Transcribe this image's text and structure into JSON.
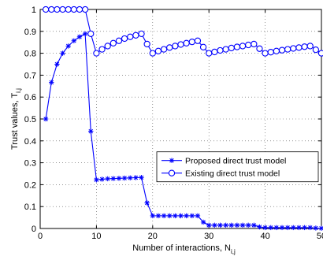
{
  "chart_data": {
    "type": "line",
    "xlabel": "Number of interactions, N",
    "xlabel_sub": "i,j",
    "ylabel": "Trust values, T",
    "ylabel_sub": "i,j",
    "xlim": [
      0,
      50
    ],
    "ylim": [
      0,
      1
    ],
    "x_ticks": [
      0,
      10,
      20,
      30,
      40,
      50
    ],
    "y_ticks": [
      0,
      0.1,
      0.2,
      0.3,
      0.4,
      0.5,
      0.6,
      0.7,
      0.8,
      0.9,
      1
    ],
    "grid": true,
    "legend_position": "bottom-right",
    "series_color": "#0000ff",
    "x": [
      1,
      2,
      3,
      4,
      5,
      6,
      7,
      8,
      9,
      10,
      11,
      12,
      13,
      14,
      15,
      16,
      17,
      18,
      19,
      20,
      21,
      22,
      23,
      24,
      25,
      26,
      27,
      28,
      29,
      30,
      31,
      32,
      33,
      34,
      35,
      36,
      37,
      38,
      39,
      40,
      41,
      42,
      43,
      44,
      45,
      46,
      47,
      48,
      49,
      50
    ],
    "series": [
      {
        "name": "Proposed direct trust model",
        "marker": "asterisk",
        "values": [
          0.5,
          0.667,
          0.75,
          0.8,
          0.833,
          0.857,
          0.875,
          0.889,
          0.444,
          0.222,
          0.225,
          0.227,
          0.228,
          0.229,
          0.23,
          0.231,
          0.232,
          0.233,
          0.117,
          0.058,
          0.058,
          0.058,
          0.058,
          0.058,
          0.058,
          0.058,
          0.058,
          0.058,
          0.029,
          0.015,
          0.015,
          0.015,
          0.015,
          0.015,
          0.015,
          0.015,
          0.015,
          0.015,
          0.007,
          0.004,
          0.004,
          0.004,
          0.004,
          0.004,
          0.004,
          0.004,
          0.004,
          0.004,
          0.002,
          0.001
        ]
      },
      {
        "name": "Existing direct trust model",
        "marker": "circle",
        "values": [
          1,
          1,
          1,
          1,
          1,
          1,
          1,
          1,
          0.889,
          0.8,
          0.818,
          0.833,
          0.846,
          0.857,
          0.867,
          0.875,
          0.882,
          0.889,
          0.842,
          0.8,
          0.81,
          0.818,
          0.826,
          0.833,
          0.84,
          0.846,
          0.852,
          0.857,
          0.828,
          0.8,
          0.806,
          0.813,
          0.818,
          0.824,
          0.829,
          0.833,
          0.838,
          0.842,
          0.821,
          0.8,
          0.805,
          0.81,
          0.814,
          0.818,
          0.822,
          0.826,
          0.83,
          0.833,
          0.816,
          0.8
        ]
      }
    ]
  }
}
